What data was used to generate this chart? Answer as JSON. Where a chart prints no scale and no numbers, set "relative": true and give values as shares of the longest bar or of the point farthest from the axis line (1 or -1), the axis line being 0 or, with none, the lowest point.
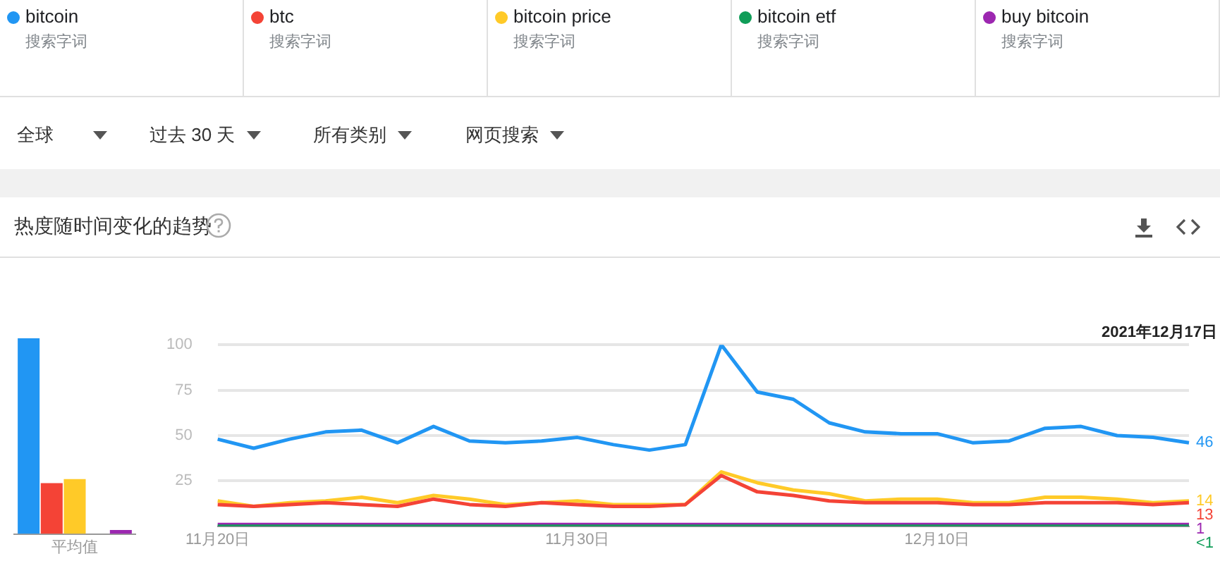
{
  "chart_data": [
    {
      "type": "other",
      "annotations": [
        "全球",
        "过去 30 天",
        "所有类别",
        "网页搜索"
      ]
    },
    {
      "type": "bar",
      "title": "热度随时间变化的趋势",
      "relative": true,
      "categories": [
        "平均值"
      ],
      "series": [
        {
          "color": "#2196f3",
          "values": [
            1
          ]
        },
        {
          "color": "#f44336",
          "values": [
            0.26
          ]
        },
        {
          "color": "#ffca28",
          "values": [
            0.28
          ]
        },
        {
          "color": "#0f9d58",
          "values": [
            0
          ]
        },
        {
          "color": "#9c27b0",
          "values": [
            0.02
          ]
        }
      ]
    },
    {
      "type": "line",
      "legend": "top",
      "grid": "y",
      "marker": "none",
      "line_style": "solid",
      "ylim": [
        0,
        100
      ],
      "yticks": [
        25,
        50,
        75,
        100
      ],
      "categories": [
        "11月20日",
        null,
        null,
        null,
        null,
        null,
        null,
        null,
        null,
        null,
        "11月30日",
        null,
        null,
        null,
        null,
        null,
        null,
        null,
        null,
        null,
        "12月10日",
        null,
        null,
        null,
        null,
        null,
        null,
        null
      ],
      "annotations": [
        "搜索字词",
        "搜索字词",
        "搜索字词",
        "搜索字词",
        "搜索字词",
        "2021年12月17日"
      ],
      "series": [
        {
          "name": "bitcoin",
          "color": "#2196f3",
          "values": [
            48,
            43,
            48,
            52,
            53,
            46,
            55,
            47,
            46,
            47,
            49,
            45,
            42,
            45,
            100,
            74,
            70,
            57,
            52,
            51,
            51,
            46,
            47,
            54,
            55,
            50,
            49,
            46
          ],
          "value_labels": [
            null,
            null,
            null,
            null,
            null,
            null,
            null,
            null,
            null,
            null,
            null,
            null,
            null,
            null,
            null,
            null,
            null,
            null,
            null,
            null,
            null,
            null,
            null,
            null,
            null,
            null,
            null,
            "46"
          ]
        },
        {
          "name": "btc",
          "color": "#f44336",
          "values": [
            12,
            11,
            12,
            13,
            12,
            11,
            15,
            12,
            11,
            13,
            12,
            11,
            11,
            12,
            28,
            19,
            17,
            14,
            13,
            13,
            13,
            12,
            12,
            13,
            13,
            13,
            12,
            13
          ],
          "value_labels": [
            null,
            null,
            null,
            null,
            null,
            null,
            null,
            null,
            null,
            null,
            null,
            null,
            null,
            null,
            null,
            null,
            null,
            null,
            null,
            null,
            null,
            null,
            null,
            null,
            null,
            null,
            null,
            "13"
          ]
        },
        {
          "name": "bitcoin price",
          "color": "#ffca28",
          "values": [
            14,
            11,
            13,
            14,
            16,
            13,
            17,
            15,
            12,
            13,
            14,
            12,
            12,
            12,
            30,
            24,
            20,
            18,
            14,
            15,
            15,
            13,
            13,
            16,
            16,
            15,
            13,
            14
          ],
          "value_labels": [
            null,
            null,
            null,
            null,
            null,
            null,
            null,
            null,
            null,
            null,
            null,
            null,
            null,
            null,
            null,
            null,
            null,
            null,
            null,
            null,
            null,
            null,
            null,
            null,
            null,
            null,
            null,
            "14"
          ]
        },
        {
          "name": "bitcoin etf",
          "color": "#0f9d58",
          "values": [
            0,
            0,
            0,
            0,
            0,
            0,
            0,
            0,
            0,
            0,
            0,
            0,
            0,
            0,
            0,
            0,
            0,
            0,
            0,
            0,
            0,
            0,
            0,
            0,
            0,
            0,
            0,
            0
          ],
          "value_labels": [
            null,
            null,
            null,
            null,
            null,
            null,
            null,
            null,
            null,
            null,
            null,
            null,
            null,
            null,
            null,
            null,
            null,
            null,
            null,
            null,
            null,
            null,
            null,
            null,
            null,
            null,
            null,
            "<1"
          ]
        },
        {
          "name": "buy bitcoin",
          "color": "#9c27b0",
          "values": [
            1,
            1,
            1,
            1,
            1,
            1,
            1,
            1,
            1,
            1,
            1,
            1,
            1,
            1,
            1,
            1,
            1,
            1,
            1,
            1,
            1,
            1,
            1,
            1,
            1,
            1,
            1,
            1
          ],
          "value_labels": [
            null,
            null,
            null,
            null,
            null,
            null,
            null,
            null,
            null,
            null,
            null,
            null,
            null,
            null,
            null,
            null,
            null,
            null,
            null,
            null,
            null,
            null,
            null,
            null,
            null,
            null,
            null,
            "1"
          ]
        }
      ]
    }
  ]
}
